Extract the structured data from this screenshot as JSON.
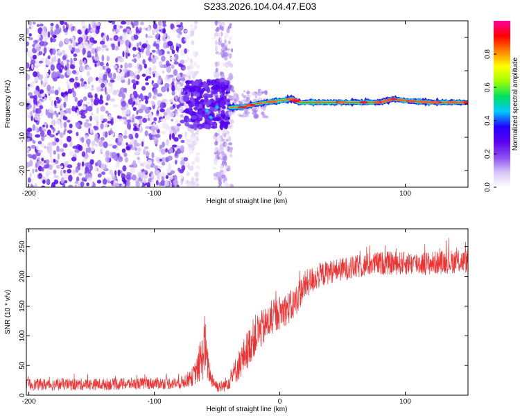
{
  "title": "S233.2026.104.04.47.E03",
  "chart_data": [
    {
      "type": "heatmap",
      "xlabel": "Height of straight line (km)",
      "ylabel": "Frequency (Hz)",
      "xlim": [
        -202,
        150
      ],
      "ylim": [
        -25,
        25
      ],
      "x_ticks": [
        -200,
        -100,
        0,
        100
      ],
      "x_tick_labels": [
        "-200",
        "-100",
        "0",
        "100"
      ],
      "y_ticks": [
        -20,
        -10,
        0,
        10,
        20
      ],
      "y_tick_labels": [
        "-20",
        "-10",
        "0",
        "10",
        "20"
      ],
      "grid": false,
      "colorbar": {
        "label": "Normalized spectral amplitude",
        "range": [
          0,
          1
        ],
        "ticks": [
          0,
          0.2,
          0.4,
          0.6,
          0.8
        ],
        "tick_labels": [
          "0.0",
          "0.2",
          "0.4",
          "0.6",
          "0.8"
        ],
        "colormap": [
          "#ffffff",
          "#d6c3f7",
          "#8a4cf0",
          "#5b00f0",
          "#2200ff",
          "#00c8ff",
          "#00e060",
          "#a0ff00",
          "#ffff00",
          "#ff8000",
          "#ff0000",
          "#ff00a0"
        ]
      },
      "features": {
        "noise_region_x": [
          -202,
          -75
        ],
        "noise_strip_x": [
          -52,
          -38
        ],
        "noise_cluster_x": [
          -75,
          -40
        ],
        "tone_start_x": -40,
        "tone_path": [
          [
            -40,
            -1
          ],
          [
            -30,
            -1
          ],
          [
            -20,
            0
          ],
          [
            -10,
            0.5
          ],
          [
            0,
            1
          ],
          [
            10,
            1.5
          ],
          [
            15,
            0.5
          ],
          [
            30,
            0.5
          ],
          [
            60,
            0.5
          ],
          [
            80,
            0.5
          ],
          [
            90,
            1.5
          ],
          [
            100,
            1
          ],
          [
            120,
            0.5
          ],
          [
            150,
            0.5
          ]
        ]
      }
    },
    {
      "type": "line",
      "xlabel": "Height of straight line (km)",
      "ylabel": "SNR (10 * v/v)",
      "xlim": [
        -202,
        150
      ],
      "ylim": [
        0,
        280
      ],
      "x_ticks": [
        -200,
        -100,
        0,
        100
      ],
      "x_tick_labels": [
        "-200",
        "-100",
        "0",
        "100"
      ],
      "y_ticks": [
        0,
        50,
        100,
        150,
        200,
        250
      ],
      "y_tick_labels": [
        "0",
        "50",
        "100",
        "150",
        "200",
        "250"
      ],
      "grid": false,
      "series": [
        {
          "name": "SNR",
          "color": "#ee3333",
          "envelope_x": [
            -202,
            -150,
            -100,
            -80,
            -70,
            -65,
            -62,
            -60,
            -58,
            -55,
            -50,
            -45,
            -40,
            -30,
            -20,
            -10,
            0,
            10,
            20,
            30,
            40,
            50,
            60,
            70,
            80,
            90,
            100,
            110,
            120,
            130,
            140,
            150
          ],
          "envelope_y": [
            18,
            18,
            20,
            20,
            30,
            45,
            60,
            90,
            55,
            30,
            15,
            15,
            25,
            60,
            100,
            120,
            140,
            150,
            185,
            200,
            208,
            212,
            215,
            220,
            222,
            222,
            222,
            222,
            222,
            224,
            225,
            225
          ],
          "noise": [
            10,
            10,
            10,
            10,
            15,
            25,
            40,
            55,
            30,
            15,
            10,
            10,
            15,
            30,
            35,
            30,
            28,
            28,
            25,
            22,
            20,
            20,
            20,
            20,
            20,
            20,
            20,
            20,
            20,
            20,
            20,
            20
          ]
        }
      ]
    }
  ]
}
